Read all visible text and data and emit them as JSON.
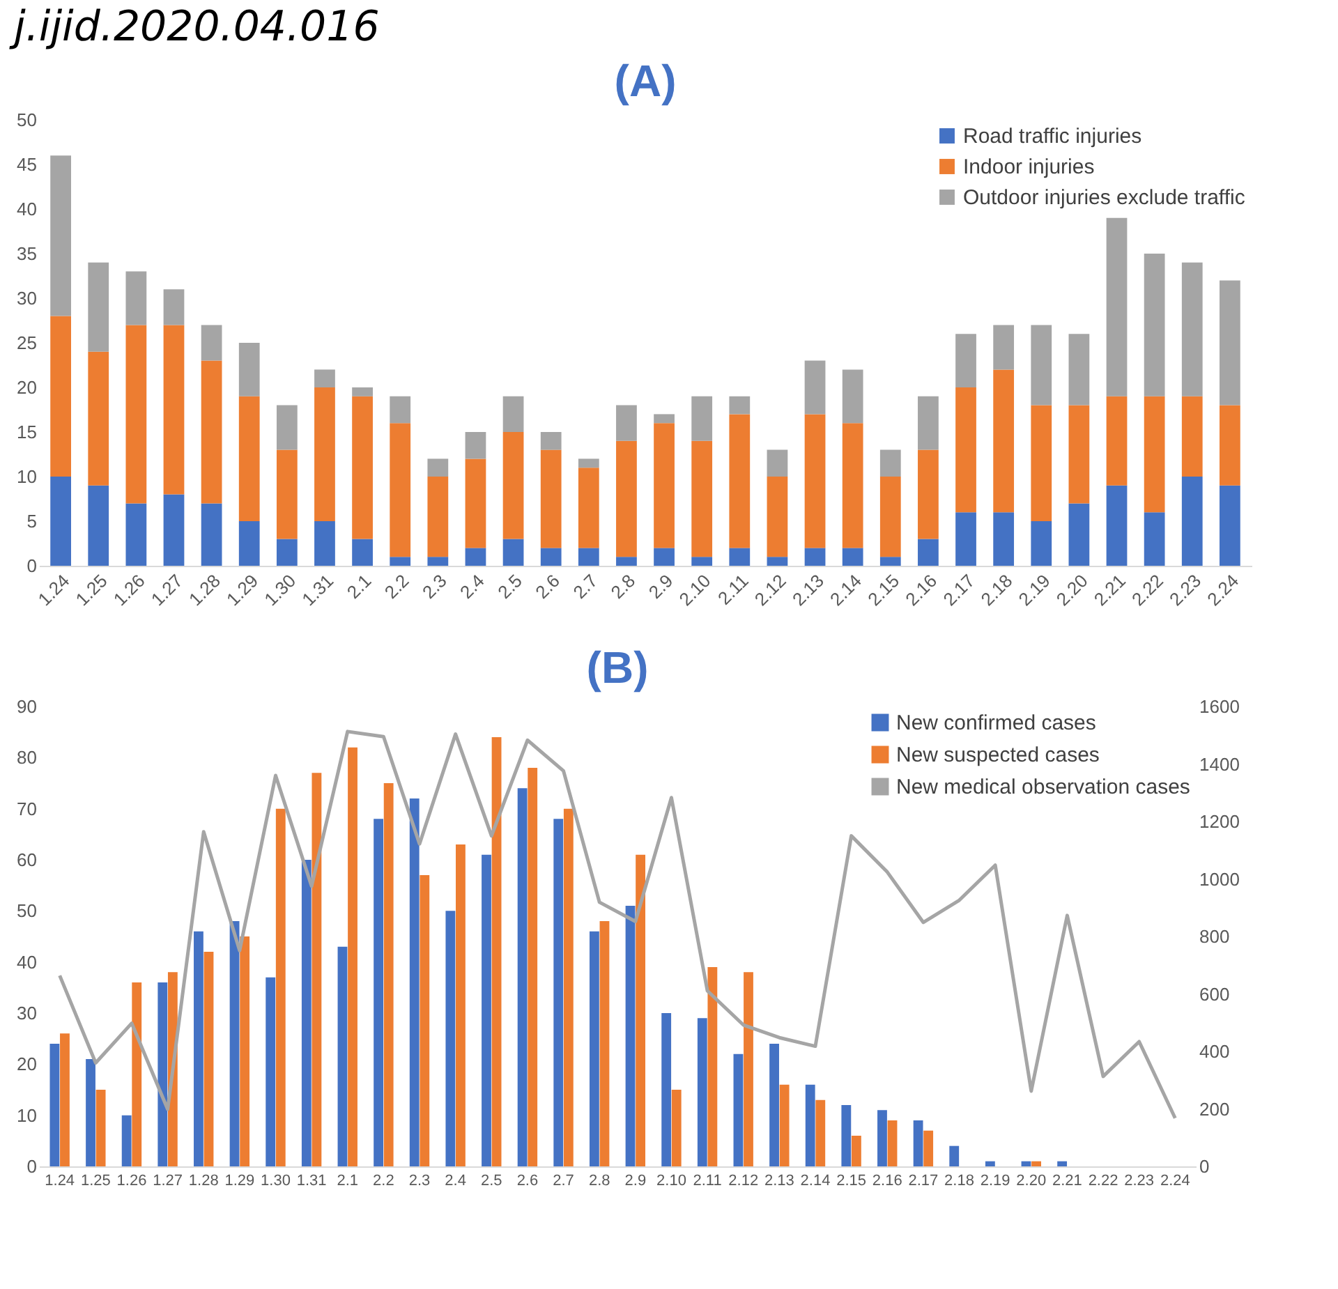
{
  "chart_data": [
    {
      "type": "bar",
      "title": "(A)",
      "annotations": [
        "j.ijid.2020.04.016"
      ],
      "stacked": true,
      "legend": "top right",
      "grid": false,
      "categories": [
        "1.24",
        "1.25",
        "1.26",
        "1.27",
        "1.28",
        "1.29",
        "1.30",
        "1.31",
        "2.1",
        "2.2",
        "2.3",
        "2.4",
        "2.5",
        "2.6",
        "2.7",
        "2.8",
        "2.9",
        "2.10",
        "2.11",
        "2.12",
        "2.13",
        "2.14",
        "2.15",
        "2.16",
        "2.17",
        "2.18",
        "2.19",
        "2.20",
        "2.21",
        "2.22",
        "2.23",
        "2.24"
      ],
      "series": [
        {
          "name": "Road traffic injuries",
          "color": "#4472c4",
          "values": [
            10,
            9,
            7,
            8,
            7,
            5,
            3,
            5,
            3,
            1,
            1,
            2,
            3,
            2,
            2,
            1,
            2,
            1,
            2,
            1,
            2,
            2,
            1,
            3,
            6,
            6,
            5,
            7,
            9,
            6,
            10,
            9
          ]
        },
        {
          "name": "Indoor injuries",
          "color": "#ed7d31",
          "values": [
            18,
            15,
            20,
            19,
            16,
            14,
            10,
            15,
            16,
            15,
            9,
            10,
            12,
            11,
            9,
            13,
            14,
            13,
            15,
            9,
            15,
            14,
            9,
            10,
            14,
            16,
            13,
            11,
            10,
            13,
            9,
            9
          ]
        },
        {
          "name": "Outdoor injuries exclude traffic",
          "color": "#a5a5a5",
          "values": [
            18,
            10,
            6,
            4,
            4,
            6,
            5,
            2,
            1,
            3,
            2,
            3,
            4,
            2,
            1,
            4,
            1,
            5,
            2,
            3,
            6,
            6,
            3,
            6,
            6,
            5,
            9,
            8,
            20,
            16,
            15,
            14
          ]
        }
      ],
      "ylim": [
        0,
        50
      ],
      "yticks": [
        0,
        5,
        10,
        15,
        20,
        25,
        30,
        35,
        40,
        45,
        50
      ]
    },
    {
      "type": "bar",
      "title": "(B)",
      "legend": "top right",
      "grid": false,
      "categories": [
        "1.24",
        "1.25",
        "1.26",
        "1.27",
        "1.28",
        "1.29",
        "1.30",
        "1.31",
        "2.1",
        "2.2",
        "2.3",
        "2.4",
        "2.5",
        "2.6",
        "2.7",
        "2.8",
        "2.9",
        "2.10",
        "2.11",
        "2.12",
        "2.13",
        "2.14",
        "2.15",
        "2.16",
        "2.17",
        "2.18",
        "2.19",
        "2.20",
        "2.21",
        "2.22",
        "2.23",
        "2.24"
      ],
      "series": [
        {
          "name": "New confirmed cases",
          "color": "#4472c4",
          "values": [
            24,
            21,
            10,
            36,
            46,
            48,
            37,
            60,
            43,
            68,
            72,
            50,
            61,
            74,
            68,
            46,
            51,
            30,
            29,
            22,
            24,
            16,
            12,
            11,
            9,
            4,
            1,
            1,
            1,
            0,
            0,
            0
          ]
        },
        {
          "name": "New suspected cases",
          "color": "#ed7d31",
          "values": [
            26,
            15,
            36,
            38,
            42,
            45,
            70,
            77,
            82,
            75,
            57,
            63,
            84,
            78,
            70,
            48,
            61,
            15,
            39,
            38,
            16,
            13,
            6,
            9,
            7,
            0,
            0,
            1,
            0,
            0,
            0,
            0
          ]
        },
        {
          "name": "New medical observation cases",
          "color": "#a5a5a5",
          "type": "line",
          "axis": "y2",
          "values": [
            664,
            360,
            498,
            199,
            1164,
            751,
            1360,
            975,
            1513,
            1495,
            1122,
            1504,
            1150,
            1483,
            1376,
            919,
            852,
            1283,
            611,
            492,
            448,
            418,
            1150,
            1024,
            849,
            926,
            1048,
            262,
            873,
            313,
            434,
            168
          ]
        }
      ],
      "ylim": [
        0,
        90
      ],
      "yticks": [
        0,
        10,
        20,
        30,
        40,
        50,
        60,
        70,
        80,
        90
      ],
      "y2lim": [
        0,
        1600
      ],
      "y2ticks": [
        0,
        200,
        400,
        600,
        800,
        1000,
        1200,
        1400,
        1600
      ]
    }
  ]
}
